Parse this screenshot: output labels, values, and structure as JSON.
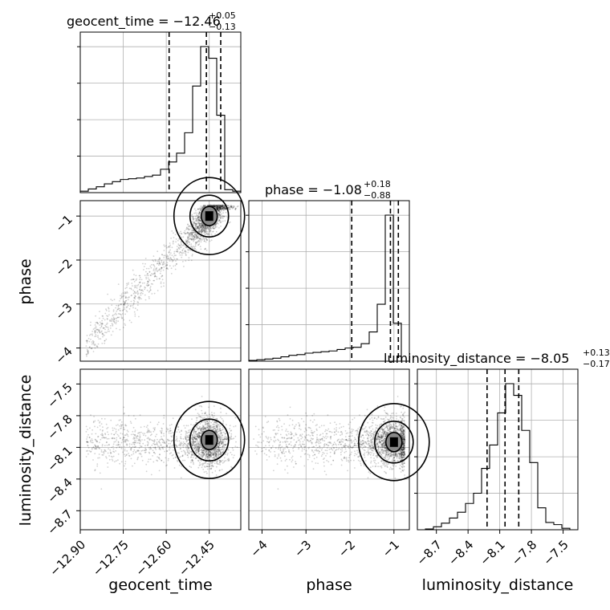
{
  "chart_data": {
    "type": "corner",
    "parameters": [
      "geocent_time",
      "phase",
      "luminosity_distance"
    ],
    "titles": [
      {
        "name": "geocent_time",
        "median": "−12.46",
        "plus": "+0.05",
        "minus": "−0.13"
      },
      {
        "name": "phase",
        "median": "−1.08",
        "plus": "+0.18",
        "minus": "−0.88"
      },
      {
        "name": "luminosity_distance",
        "median": "−8.05",
        "plus": "+0.13",
        "minus": "−0.17"
      }
    ],
    "ticks": {
      "geocent_time": [
        "−12.90",
        "−12.75",
        "−12.60",
        "−12.45"
      ],
      "phase": [
        "−4",
        "−3",
        "−2",
        "−1"
      ],
      "luminosity_distance": [
        "−8.7",
        "−8.4",
        "−8.1",
        "−7.8",
        "−7.5"
      ]
    },
    "tick_values": {
      "geocent_time": [
        -12.9,
        -12.75,
        -12.6,
        -12.45
      ],
      "phase": [
        -4,
        -3,
        -2,
        -1
      ],
      "luminosity_distance": [
        -8.7,
        -8.4,
        -8.1,
        -7.8,
        -7.5
      ]
    },
    "ranges": {
      "geocent_time": [
        -12.9,
        -12.34
      ],
      "phase": [
        -4.3,
        -0.65
      ],
      "luminosity_distance": [
        -8.88,
        -7.36
      ]
    },
    "quantiles": {
      "geocent_time": [
        -12.59,
        -12.46,
        -12.41
      ],
      "phase": [
        -1.96,
        -1.08,
        -0.9
      ],
      "luminosity_distance": [
        -8.22,
        -8.05,
        -7.92
      ]
    },
    "histograms": {
      "geocent_time": {
        "edges": [
          -12.9,
          -12.872,
          -12.844,
          -12.816,
          -12.788,
          -12.76,
          -12.732,
          -12.704,
          -12.676,
          -12.648,
          -12.62,
          -12.592,
          -12.564,
          -12.536,
          -12.508,
          -12.48,
          -12.452,
          -12.424,
          -12.396,
          -12.368,
          -12.34
        ],
        "counts": [
          0.01,
          0.025,
          0.04,
          0.06,
          0.075,
          0.09,
          0.095,
          0.1,
          0.11,
          0.12,
          0.16,
          0.21,
          0.27,
          0.41,
          0.73,
          1.0,
          0.92,
          0.53,
          0.02,
          0.01
        ]
      },
      "phase": {
        "edges": [
          -4.3,
          -4.1175,
          -3.935,
          -3.7525,
          -3.57,
          -3.3875,
          -3.205,
          -3.0225,
          -2.84,
          -2.6575,
          -2.475,
          -2.2925,
          -2.11,
          -1.9275,
          -1.745,
          -1.5625,
          -1.38,
          -1.1975,
          -1.015,
          -0.8325,
          -0.65
        ],
        "counts": [
          0.005,
          0.01,
          0.015,
          0.02,
          0.03,
          0.04,
          0.045,
          0.055,
          0.06,
          0.065,
          0.07,
          0.08,
          0.09,
          0.095,
          0.12,
          0.2,
          0.39,
          1.0,
          0.26,
          0.0
        ]
      },
      "luminosity_distance": {
        "edges": [
          -8.88,
          -8.804,
          -8.728,
          -8.652,
          -8.576,
          -8.5,
          -8.424,
          -8.348,
          -8.272,
          -8.196,
          -8.12,
          -8.044,
          -7.968,
          -7.892,
          -7.816,
          -7.74,
          -7.664,
          -7.588,
          -7.512,
          -7.436,
          -7.36
        ],
        "counts": [
          0.0,
          0.005,
          0.02,
          0.045,
          0.08,
          0.12,
          0.18,
          0.25,
          0.42,
          0.58,
          0.8,
          1.0,
          0.92,
          0.68,
          0.46,
          0.15,
          0.05,
          0.035,
          0.01,
          0.0
        ]
      }
    },
    "joint_2d": [
      {
        "x": "geocent_time",
        "y": "phase",
        "mode": [
          -12.45,
          -1.0
        ]
      },
      {
        "x": "geocent_time",
        "y": "luminosity_distance",
        "mode": [
          -12.45,
          -8.03
        ]
      },
      {
        "x": "phase",
        "y": "luminosity_distance",
        "mode": [
          -1.0,
          -8.05
        ]
      }
    ],
    "grid": true
  }
}
